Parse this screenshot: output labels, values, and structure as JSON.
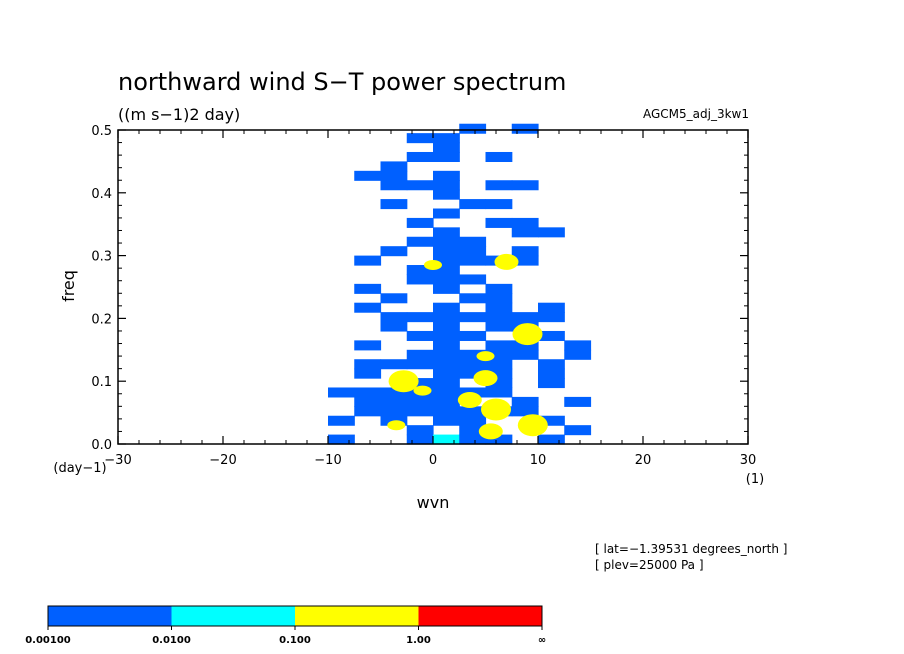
{
  "chart_data": {
    "type": "heatmap",
    "title": "northward wind S−T power spectrum",
    "units": "((m s−1)2 day)",
    "model": "AGCM5_adj_3kw1",
    "xlabel": "wvn",
    "ylabel": "freq",
    "x_unit": "(1)",
    "y_unit": "(day−1)",
    "xlim": [
      -30,
      30
    ],
    "ylim": [
      0,
      0.5
    ],
    "x_ticks": [
      -30,
      -20,
      -10,
      0,
      10,
      20,
      30
    ],
    "x_tick_labels": [
      "−30",
      "−20",
      "−10",
      "0",
      "10",
      "20",
      "30"
    ],
    "y_ticks": [
      0.0,
      0.1,
      0.2,
      0.3,
      0.4,
      0.5
    ],
    "y_tick_labels": [
      "0.0",
      "0.1",
      "0.2",
      "0.3",
      "0.4",
      "0.5"
    ],
    "info": [
      "[ lat=−1.39531 degrees_north ]",
      "[ plev=25000 Pa ]"
    ],
    "levels": [
      {
        "lower": "0.00100",
        "color": "#0060ff"
      },
      {
        "lower": "0.0100",
        "color": "#00ffff"
      },
      {
        "lower": "0.100",
        "color": "#ffff00"
      },
      {
        "lower": "1.00",
        "color": "#ff0000"
      }
    ],
    "level_labels": [
      "0.00100",
      "0.0100",
      "0.100",
      "1.00",
      "∞"
    ],
    "yellow_regions": [
      {
        "wvn": 0,
        "freq": 0.285
      },
      {
        "wvn": 7,
        "freq": 0.29
      },
      {
        "wvn": 9,
        "freq": 0.175
      },
      {
        "wvn": 5,
        "freq": 0.14
      },
      {
        "wvn": 5,
        "freq": 0.105
      },
      {
        "wvn": -2.8,
        "freq": 0.1
      },
      {
        "wvn": -1,
        "freq": 0.085
      },
      {
        "wvn": 3.5,
        "freq": 0.07
      },
      {
        "wvn": 6,
        "freq": 0.055
      },
      {
        "wvn": -3.5,
        "freq": 0.03
      },
      {
        "wvn": 5.5,
        "freq": 0.02
      },
      {
        "wvn": 9.5,
        "freq": 0.03
      }
    ]
  }
}
